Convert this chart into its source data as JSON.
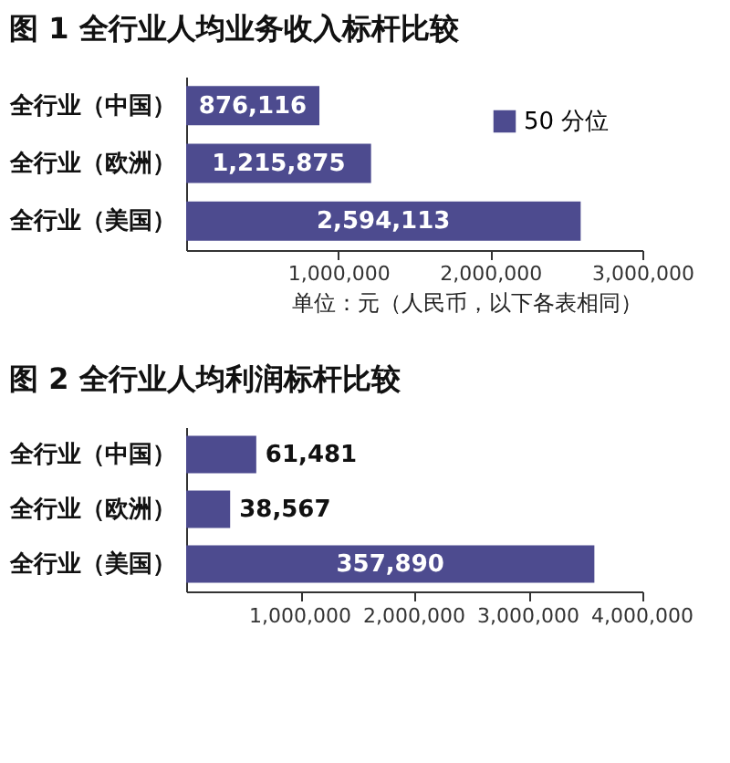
{
  "chart_data": [
    {
      "type": "bar",
      "orientation": "horizontal",
      "title": "图 1 全行业人均业务收入标杆比较",
      "categories": [
        "全行业（中国）",
        "全行业（欧洲）",
        "全行业（美国）"
      ],
      "series": [
        {
          "name": "50 分位",
          "color": "#4d4b8f",
          "values": [
            876116,
            1215875,
            2594113
          ],
          "value_labels": [
            "876,116",
            "1,215,875",
            "2,594,113"
          ]
        }
      ],
      "xlim": [
        0,
        3000000
      ],
      "xticks": [
        {
          "value": 1000000,
          "label": "1,000,000"
        },
        {
          "value": 2000000,
          "label": "2,000,000"
        },
        {
          "value": 3000000,
          "label": "3,000,000"
        }
      ],
      "grid": false,
      "legend": "top right",
      "annotations": [
        "单位：元（人民币，以下各表相同）"
      ]
    },
    {
      "type": "bar",
      "orientation": "horizontal",
      "title": "图 2 全行业人均利润标杆比较",
      "categories": [
        "全行业（中国）",
        "全行业（欧洲）",
        "全行业（美国）"
      ],
      "series": [
        {
          "color": "#4d4b8f",
          "values": [
            61481,
            38567,
            357890
          ],
          "value_labels": [
            "61,481",
            "38,567",
            "357,890"
          ]
        }
      ],
      "xlim": [
        0,
        400000
      ],
      "xticks": [
        {
          "value": 100000,
          "label": null
        },
        {
          "value": 200000,
          "label": null
        },
        {
          "value": 300000,
          "label": null
        },
        {
          "value": 400000,
          "label": null
        }
      ],
      "grid": false,
      "annotations": [
        "1,000,000",
        "2,000,000",
        "3,000,000",
        "4,000,000"
      ]
    }
  ]
}
